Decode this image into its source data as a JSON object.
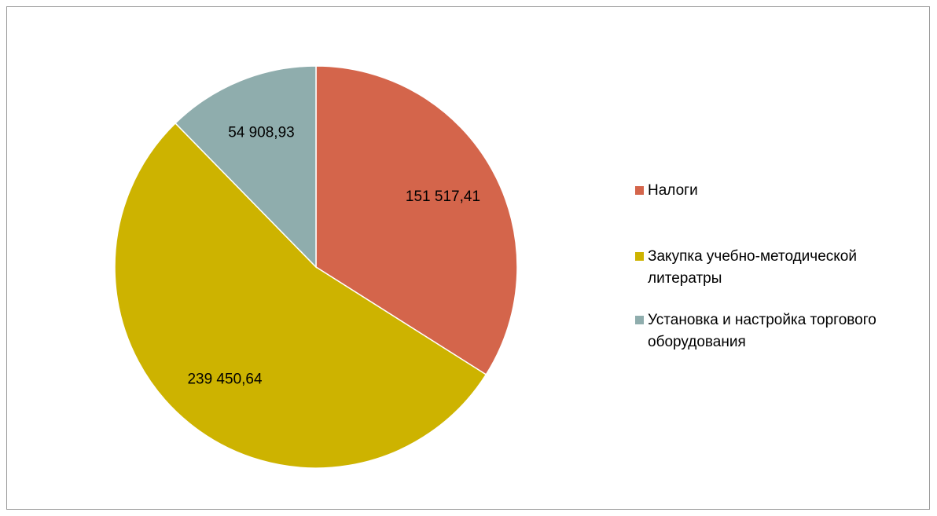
{
  "chart_data": {
    "type": "pie",
    "categories": [
      "Налоги",
      "Закупка учебно-методической литератры",
      "Установка и настройка торгового оборудования"
    ],
    "values": [
      151517.41,
      239450.64,
      54908.93
    ],
    "value_labels": [
      "151 517,41",
      "239 450,64",
      "54 908,93"
    ],
    "colors": [
      "#d4654b",
      "#cdb300",
      "#8fadad"
    ],
    "legend": "right"
  }
}
